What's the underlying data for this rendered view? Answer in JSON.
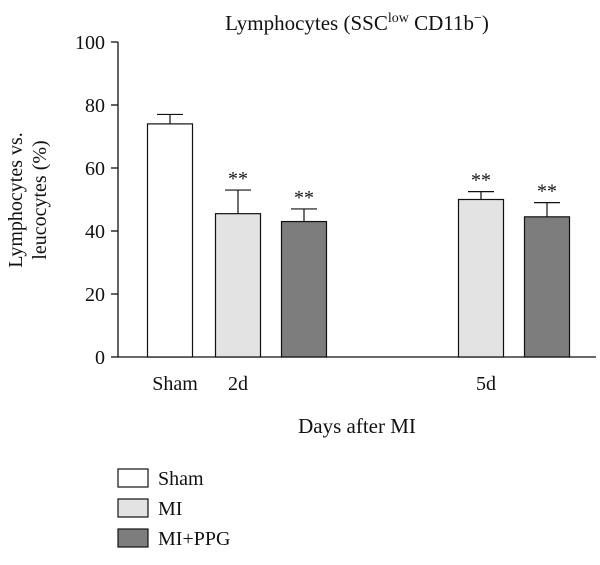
{
  "chart_data": {
    "type": "bar",
    "title": {
      "main": "Lymphocytes (SSC",
      "sup1": "low",
      "mid": " CD11b",
      "sup2": "−",
      "end": ")"
    },
    "ylabel_lines": [
      "Lymphocytes vs.",
      "leucocytes (%)"
    ],
    "xlabel": "Days after MI",
    "ylim": [
      0,
      100
    ],
    "yticks": [
      0,
      20,
      40,
      60,
      80,
      100
    ],
    "groups": [
      {
        "label": "Sham",
        "bars": [
          {
            "series": "Sham",
            "value": 74,
            "error": 3,
            "annotation": ""
          }
        ]
      },
      {
        "label": "2d",
        "bars": [
          {
            "series": "MI",
            "value": 45.5,
            "error": 7.5,
            "annotation": "**"
          },
          {
            "series": "MI+PPG",
            "value": 43,
            "error": 4,
            "annotation": "**"
          }
        ]
      },
      {
        "label": "5d",
        "bars": [
          {
            "series": "MI",
            "value": 50,
            "error": 2.5,
            "annotation": "**"
          },
          {
            "series": "MI+PPG",
            "value": 44.5,
            "error": 4.5,
            "annotation": "**"
          }
        ]
      }
    ],
    "legend": [
      {
        "name": "Sham",
        "color": "#ffffff"
      },
      {
        "name": "MI",
        "color": "#e3e3e3"
      },
      {
        "name": "MI+PPG",
        "color": "#7d7d7d"
      }
    ],
    "legend_position": "bottom-left",
    "grid": false
  }
}
